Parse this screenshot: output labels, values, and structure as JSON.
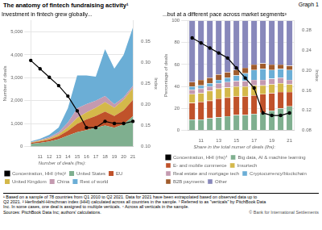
{
  "title": "The anatomy of fintech fundraising activity¹",
  "annotations": [
    "Graph 1",
    "¹ Based on a sample of 78 countries from Q1 2010 to Q2 2021. Data for 2021 have been extrapolated based on observed data up to",
    "Q2 2021.  ² Herfindahl-Hirschman index (HHI) calculated across all countries in the sample.  ³ Referred to as \"verticals\" by PitchBook Data",
    "Inc. In some cases, one deal is assigned to multiple verticals.  ⁴ Across all verticals in the sample.",
    "Sources: PitchBook Data Inc; authors' calculations.",
    "© Bank for International Settlements"
  ],
  "chart_data": [
    {
      "type": "area",
      "title": "Investment in fintech grew globally...",
      "ylabel": "Number of deals",
      "y2label": "Index",
      "annotations": [
        "Number of deals (lhs):"
      ],
      "stacked": true,
      "grid": true,
      "legend": "bottom",
      "categories": [
        null,
        "11",
        "12",
        "13",
        "14",
        "15",
        "16",
        "17",
        "18",
        "19",
        "20",
        "21"
      ],
      "series": [
        {
          "name": "United States",
          "color": "#7faf8f",
          "values": [
            120,
            160,
            220,
            320,
            480,
            630,
            720,
            820,
            920,
            820,
            970,
            1320
          ]
        },
        {
          "name": "EU",
          "color": "#c0522a",
          "values": [
            40,
            65,
            85,
            130,
            210,
            360,
            460,
            510,
            610,
            510,
            610,
            720
          ]
        },
        {
          "name": "United Kingdom",
          "color": "#d4b84a",
          "values": [
            20,
            35,
            55,
            85,
            155,
            260,
            310,
            360,
            410,
            360,
            460,
            510
          ]
        },
        {
          "name": "China",
          "color": "#c49ab0",
          "values": [
            10,
            25,
            45,
            85,
            210,
            420,
            360,
            310,
            260,
            155,
            105,
            105
          ]
        },
        {
          "name": "Rest of world",
          "color": "#6baed6",
          "values": [
            30,
            55,
            110,
            210,
            620,
            1430,
            1250,
            1050,
            2050,
            1555,
            1855,
            2545
          ]
        },
        {
          "name": "Concentration, HHI (rhs)²",
          "type": "line",
          "axis": "y2",
          "color": "#000000",
          "marker": "circle",
          "values": [
            0.305,
            0.285,
            0.265,
            0.245,
            0.22,
            0.185,
            0.145,
            0.145,
            0.16,
            0.155,
            0.155,
            0.16
          ]
        }
      ],
      "ylim": [
        0,
        5500
      ],
      "yticks": [
        0,
        {
          "value": 1000,
          "label": "1,000"
        },
        {
          "value": 2000,
          "label": "2,000"
        },
        {
          "value": 3000,
          "label": "3,000"
        },
        {
          "value": 4000,
          "label": "4,000"
        },
        {
          "value": 5000,
          "label": "5,000"
        }
      ],
      "y2lim": [
        0.1,
        0.4
      ],
      "y2ticks": [
        {
          "value": 0.1,
          "label": "0.10"
        },
        0.15,
        {
          "value": 0.2,
          "label": "0.20"
        },
        0.25,
        {
          "value": 0.3,
          "label": "0.30"
        },
        0.35
      ]
    },
    {
      "type": "bar",
      "title": "...but at a different pace across market segments³",
      "ylabel": "Percentage of deals",
      "y2label": "Index",
      "annotations": [
        "Share in the total numer of deals (lhs):"
      ],
      "stacked": true,
      "grid": true,
      "legend": "bottom",
      "categories": [
        null,
        "11",
        null,
        "13",
        null,
        "15",
        null,
        "17",
        null,
        "19",
        null,
        "21"
      ],
      "series": [
        {
          "name": "Big data, AI & machine learning",
          "color": "#7faf8f",
          "values": [
            10,
            10,
            11,
            12,
            13,
            14,
            14,
            15,
            16,
            18,
            20,
            22
          ]
        },
        {
          "name": "E- and mobile commerce",
          "color": "#c0522a",
          "values": [
            15,
            16,
            16,
            17,
            17,
            17,
            17,
            17,
            17,
            16,
            15,
            13
          ]
        },
        {
          "name": "Insurtech",
          "color": "#d4b84a",
          "values": [
            8,
            8,
            9,
            9,
            9,
            9,
            9,
            9,
            8,
            8,
            8,
            7
          ]
        },
        {
          "name": "Real estate and mortgage tech",
          "color": "#c49ab0",
          "values": [
            4,
            4,
            4,
            5,
            5,
            5,
            5,
            5,
            5,
            5,
            5,
            4
          ]
        },
        {
          "name": "Cryptocurrency/blockchain",
          "color": "#6baed6",
          "values": [
            3,
            3,
            3,
            3,
            4,
            5,
            7,
            9,
            10,
            8,
            8,
            9
          ]
        },
        {
          "name": "B2B payments",
          "color": "#a05c2c",
          "values": [
            4,
            5,
            5,
            5,
            5,
            5,
            5,
            5,
            5,
            5,
            4,
            4
          ]
        },
        {
          "name": "Other",
          "color": "#8888bb",
          "values": [
            56,
            54,
            52,
            49,
            47,
            45,
            43,
            40,
            39,
            40,
            40,
            41
          ]
        },
        {
          "name": "Concentration, HHI (rhs)⁴",
          "type": "line",
          "axis": "y2",
          "color": "#000000",
          "marker": "circle",
          "values": [
            0.265,
            0.255,
            0.245,
            0.235,
            0.225,
            0.205,
            0.185,
            0.165,
            0.115,
            0.11,
            0.11,
            0.115
          ]
        }
      ],
      "ylim": [
        0,
        100
      ],
      "yticks": [
        0,
        20,
        40,
        60,
        80,
        100
      ],
      "y2lim": [
        0.08,
        0.3
      ],
      "y2ticks": [
        0.08,
        0.12,
        0.16,
        {
          "value": 0.2,
          "label": "0.20"
        },
        0.24,
        0.28
      ]
    }
  ]
}
